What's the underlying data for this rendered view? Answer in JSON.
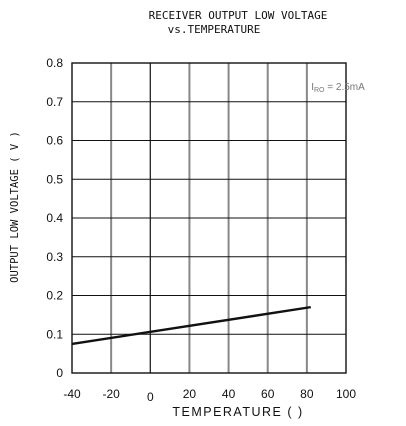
{
  "chart_data": {
    "type": "line",
    "title_line1": "RECEIVER OUTPUT LOW VOLTAGE",
    "title_line2": "vs.TEMPERATURE",
    "xlabel": "TEMPERATURE (    )",
    "ylabel": "OUTPUT LOW VOLTAGE ( V )",
    "xlim": [
      -40,
      100
    ],
    "ylim": [
      0,
      0.8
    ],
    "x_ticks": [
      "-40",
      "-20",
      "0",
      "20",
      "40",
      "60",
      "80",
      "100"
    ],
    "y_ticks": [
      "0",
      "0.1",
      "0.2",
      "0.3",
      "0.4",
      "0.5",
      "0.6",
      "0.7",
      "0.8"
    ],
    "grid": true,
    "annotation": {
      "text_prefix": "I",
      "text_sub": "RO",
      "text_suffix": " = 2.5mA"
    },
    "series": [
      {
        "x": [
          -40,
          82
        ],
        "y": [
          0.075,
          0.17
        ]
      }
    ],
    "colors": {
      "line": "#111111",
      "grid": "#888888",
      "frame": "#111111"
    }
  }
}
